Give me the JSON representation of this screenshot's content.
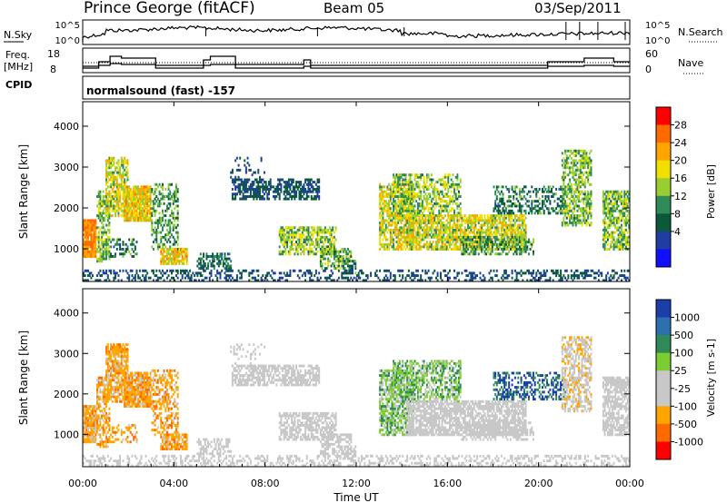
{
  "header": {
    "station": "Prince George (fitACF)",
    "beam": "Beam 05",
    "date": "03/Sep/2011",
    "cpid_label": "CPID",
    "cpid_value": "normalsound (fast) -157"
  },
  "top_panels": {
    "noise": {
      "left_label": "N.Sky",
      "right_label": "N.Search",
      "y_ticks_left": [
        "10^5",
        "10^0"
      ],
      "y_ticks_right": [
        "10^5",
        "10^0"
      ]
    },
    "freq": {
      "left_label_1": "Freq.",
      "left_label_2": "[MHz]",
      "right_label": "Nave",
      "y_ticks_left": [
        "18",
        "8"
      ],
      "y_ticks_right": [
        "60",
        "0"
      ]
    }
  },
  "time_axis": {
    "ticks": [
      "00:00",
      "04:00",
      "08:00",
      "12:00",
      "16:00",
      "20:00",
      "00:00"
    ],
    "label": "Time UT"
  },
  "chart_data": [
    {
      "type": "heatmap",
      "name": "power",
      "ylabel": "Slant Range [km]",
      "yticks": [
        1000,
        2000,
        3000,
        4000
      ],
      "ylim": [
        200,
        4600
      ],
      "xlim_hours": [
        0,
        24
      ],
      "colorbar": {
        "label": "Power [dB]",
        "ticks": [
          "28",
          "24",
          "20",
          "16",
          "12",
          "8",
          "4"
        ],
        "colors": [
          "#ff0000",
          "#ff6a00",
          "#ffa500",
          "#f0e000",
          "#9acd32",
          "#2e8b57",
          "#0a5a3a",
          "#1e3fa0",
          "#1010ff"
        ]
      }
    },
    {
      "type": "heatmap",
      "name": "velocity",
      "ylabel": "Slant Range [km]",
      "yticks": [
        1000,
        2000,
        3000,
        4000
      ],
      "ylim": [
        200,
        4600
      ],
      "xlim_hours": [
        0,
        24
      ],
      "colorbar": {
        "label": "Velocity [m s-1]",
        "ticks": [
          "1000",
          "500",
          "100",
          "25",
          "-25",
          "-100",
          "-500",
          "-1000"
        ],
        "colors": [
          "#1a3fa8",
          "#2e6fb0",
          "#2e8b57",
          "#7ccd32",
          "#c8c8c8",
          "#c8c8c8",
          "#ffa500",
          "#ff6a00",
          "#ff0000"
        ]
      }
    }
  ]
}
